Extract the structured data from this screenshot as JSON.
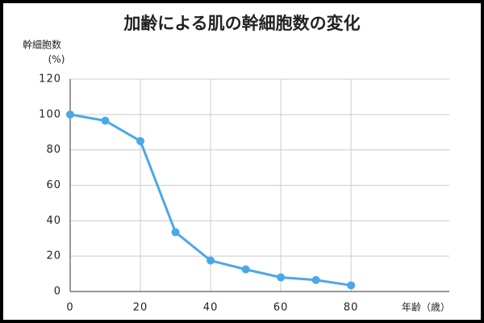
{
  "chart_data": {
    "type": "line",
    "title": "加齢による肌の幹細胞数の変化",
    "y_label": [
      "幹細胞数",
      "(%)"
    ],
    "x_label": "年齢（歳）",
    "series": [
      {
        "color": "#4aa8e8",
        "x": [
          0,
          10,
          20,
          30,
          40,
          50,
          60,
          70,
          80
        ],
        "values": [
          100,
          96.5,
          85,
          33.5,
          17.5,
          12.5,
          8,
          6.5,
          3.5
        ]
      }
    ],
    "xlim": [
      0,
      108
    ],
    "xticks": [
      0,
      20,
      40,
      60,
      80
    ],
    "ylim": [
      0,
      120
    ],
    "yticks": [
      0,
      20,
      40,
      60,
      80,
      100,
      120
    ],
    "grid": true
  }
}
